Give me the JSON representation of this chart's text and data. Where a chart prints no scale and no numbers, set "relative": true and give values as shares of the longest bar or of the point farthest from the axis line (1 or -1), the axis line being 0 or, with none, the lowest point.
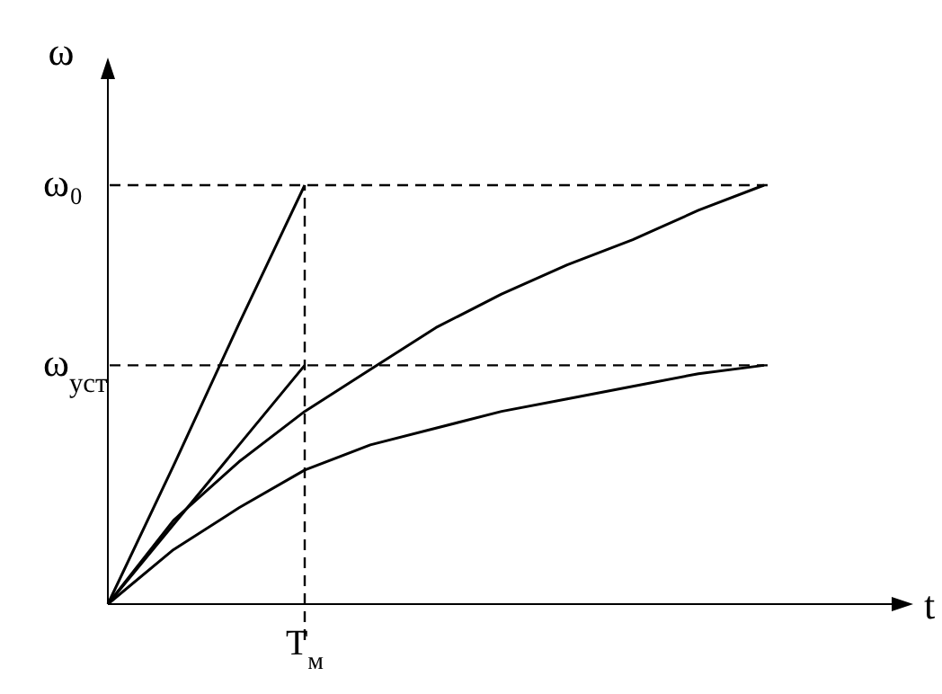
{
  "chart_data": {
    "type": "line",
    "relative": true,
    "xlabel": "t",
    "ylabel": "ω",
    "categories": [
      null,
      null,
      null,
      null,
      null,
      null,
      null,
      null,
      null,
      null,
      null
    ],
    "series": [
      {
        "color": "#000000",
        "values": [
          0,
          0.33,
          0.67,
          1,
          null,
          null,
          null,
          null,
          null,
          null,
          null
        ]
      },
      {
        "color": "#000000",
        "values": [
          0,
          0.19,
          0.38,
          0.57,
          null,
          null,
          null,
          null,
          null,
          null,
          null
        ]
      },
      {
        "color": "#000000",
        "values": [
          0,
          0.2,
          0.34,
          0.46,
          0.56,
          0.66,
          0.74,
          0.81,
          0.87,
          0.94,
          1
        ]
      },
      {
        "color": "#000000",
        "values": [
          0,
          0.13,
          0.23,
          0.32,
          0.38,
          0.42,
          0.46,
          0.49,
          0.52,
          0.55,
          0.57
        ]
      }
    ],
    "ref_lines": [
      {
        "axis": "y",
        "value": 1,
        "label": "ω₀",
        "line_style": "dashed"
      },
      {
        "axis": "y",
        "value": 0.57,
        "label": "ω$_{уст}$",
        "line_style": "dashed"
      },
      {
        "axis": "x",
        "label": "T$_{м}$",
        "line_style": "dashed"
      }
    ],
    "marker": "none",
    "line_style": "solid"
  }
}
